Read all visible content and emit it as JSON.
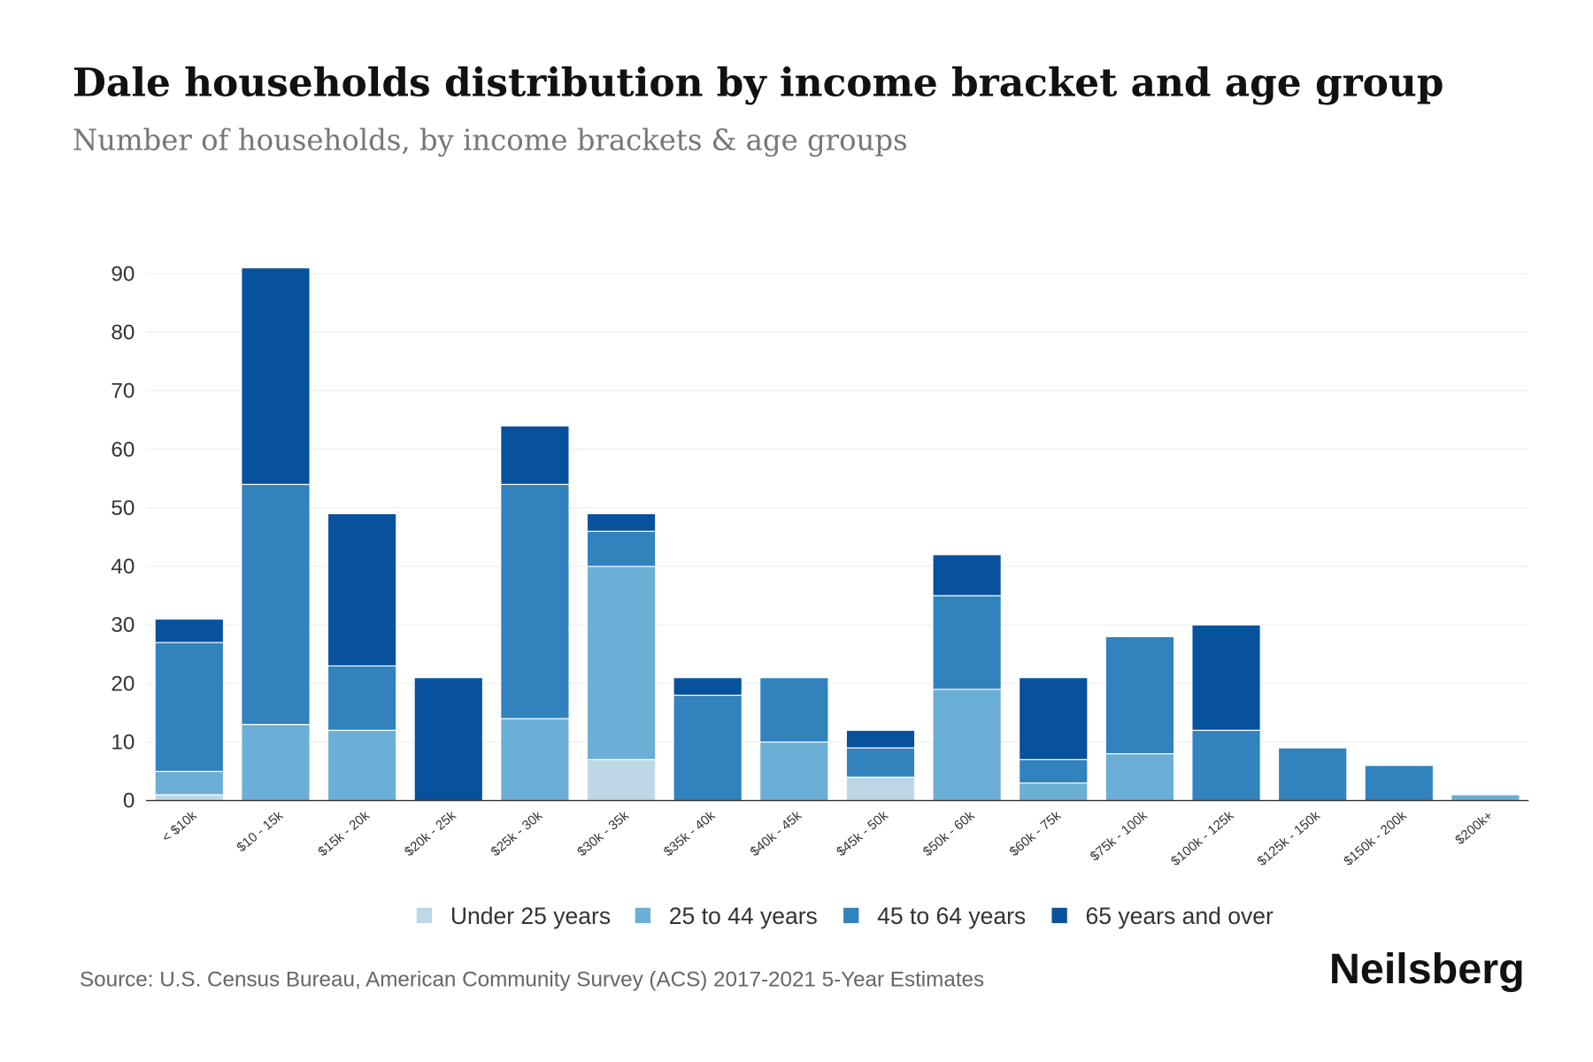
{
  "chart_data": {
    "type": "bar",
    "stacked": true,
    "title": "Dale households distribution by income bracket and age group",
    "subtitle": "Number of households, by income brackets & age groups",
    "xlabel": "",
    "ylabel": "",
    "ylim": [
      0,
      90
    ],
    "yticks": [
      0,
      10,
      20,
      30,
      40,
      50,
      60,
      70,
      80,
      90
    ],
    "grid": true,
    "legend_position": "bottom",
    "categories": [
      "< $10k",
      "$10 - 15k",
      "$15k - 20k",
      "$20k - 25k",
      "$25k - 30k",
      "$30k - 35k",
      "$35k - 40k",
      "$40k - 45k",
      "$45k - 50k",
      "$50k - 60k",
      "$60k - 75k",
      "$75k - 100k",
      "$100k - 125k",
      "$125k - 150k",
      "$150k - 200k",
      "$200k+"
    ],
    "series": [
      {
        "name": "Under 25 years",
        "color": "#bdd7e7",
        "values": [
          1,
          0,
          0,
          0,
          0,
          7,
          0,
          0,
          4,
          0,
          0,
          0,
          0,
          0,
          0,
          0
        ]
      },
      {
        "name": "25 to 44 years",
        "color": "#6baed6",
        "values": [
          4,
          13,
          12,
          0,
          14,
          33,
          0,
          10,
          0,
          19,
          3,
          8,
          0,
          0,
          0,
          1
        ]
      },
      {
        "name": "45 to 64 years",
        "color": "#3182bd",
        "values": [
          22,
          41,
          11,
          0,
          40,
          6,
          18,
          11,
          5,
          16,
          4,
          20,
          12,
          9,
          6,
          0
        ]
      },
      {
        "name": "65 years and over",
        "color": "#08519c",
        "values": [
          4,
          37,
          26,
          21,
          10,
          3,
          3,
          0,
          3,
          7,
          14,
          0,
          18,
          0,
          0,
          0
        ]
      }
    ]
  },
  "source": "Source: U.S. Census Bureau, American Community Survey (ACS) 2017-2021 5-Year Estimates",
  "brand": "Neilsberg"
}
